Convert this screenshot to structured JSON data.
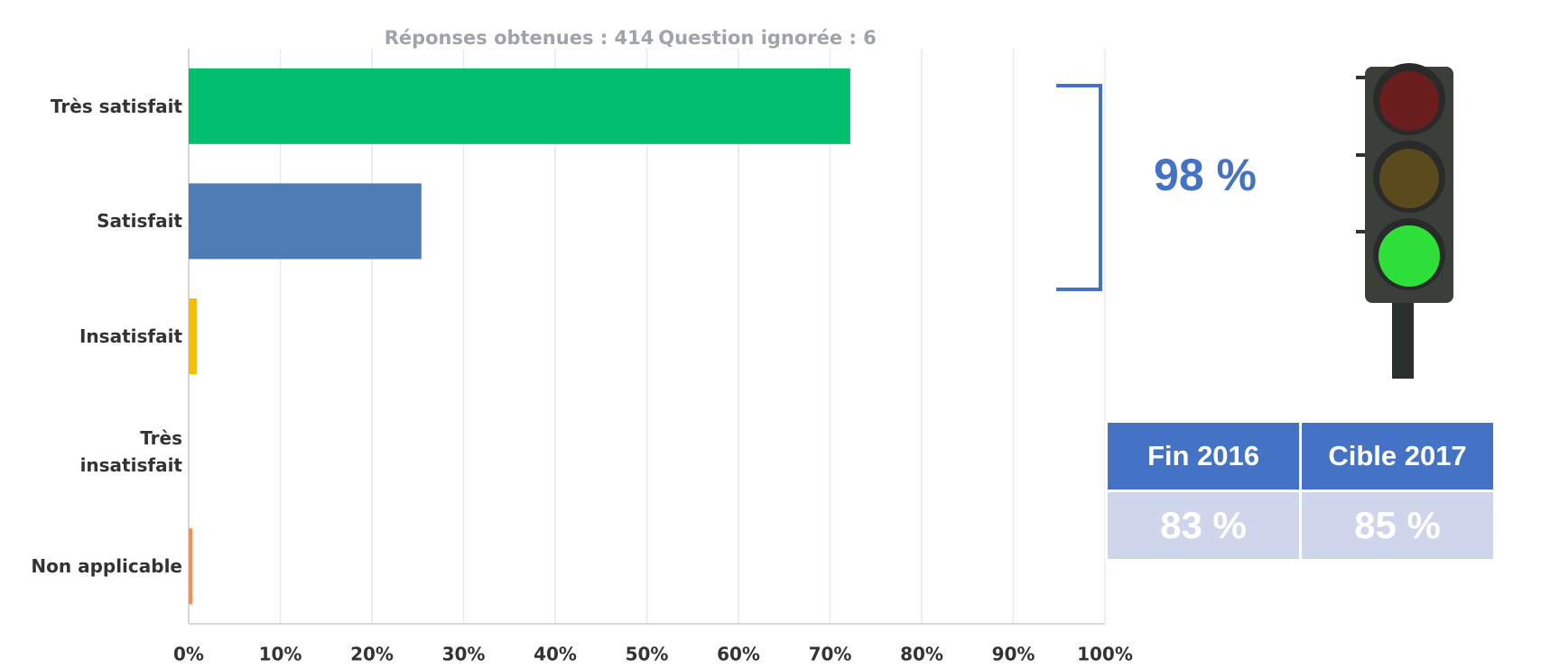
{
  "chart_data": {
    "type": "barh",
    "subtitle_responses": "Réponses obtenues : 414",
    "subtitle_skipped": "Question ignorée : 6",
    "categories": [
      "Très satisfait",
      "Satisfait",
      "Insatisfait",
      "Très insatisfait",
      "Non applicable"
    ],
    "values": [
      72.2,
      25.4,
      0.9,
      0,
      0.4
    ],
    "colors": [
      "#00bf6f",
      "#507cb6",
      "#f9be00",
      "#f05b4f",
      "#ff8b4f"
    ],
    "xlim": [
      0,
      100
    ],
    "xticks": [
      {
        "value": 0,
        "label": "0%"
      },
      {
        "value": 10,
        "label": "10%"
      },
      {
        "value": 20,
        "label": "20%"
      },
      {
        "value": 30,
        "label": "30%"
      },
      {
        "value": 40,
        "label": "40%"
      },
      {
        "value": 50,
        "label": "50%"
      },
      {
        "value": 60,
        "label": "60%"
      },
      {
        "value": 70,
        "label": "70%"
      },
      {
        "value": 80,
        "label": "80%"
      },
      {
        "value": 90,
        "label": "90%"
      },
      {
        "value": 100,
        "label": "100%"
      }
    ],
    "grid": true
  },
  "annotation": "98 %",
  "table": {
    "header": [
      "Fin 2016",
      "Cible 2017"
    ],
    "rows": [
      [
        "83 %",
        "85 %"
      ]
    ]
  }
}
